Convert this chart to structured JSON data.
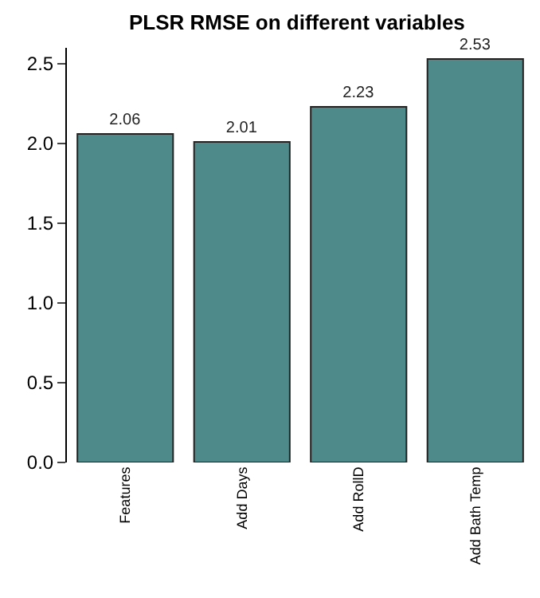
{
  "chart_data": {
    "type": "bar",
    "title": "PLSR RMSE on different variables",
    "categories": [
      "Features",
      "Add Days",
      "Add RollD",
      "Add Bath Temp"
    ],
    "values": [
      2.06,
      2.01,
      2.23,
      2.53
    ],
    "color": "#4f8a8a",
    "ylim": [
      0,
      2.6
    ],
    "yticks": [
      {
        "value": 0,
        "label": "0.0"
      },
      {
        "value": 0.5,
        "label": "0.5"
      },
      {
        "value": 1,
        "label": "1.0"
      },
      {
        "value": 1.5,
        "label": "1.5"
      },
      {
        "value": 2,
        "label": "2.0"
      },
      {
        "value": 2.5,
        "label": "2.5"
      }
    ],
    "data_labels": true,
    "grid": false
  }
}
